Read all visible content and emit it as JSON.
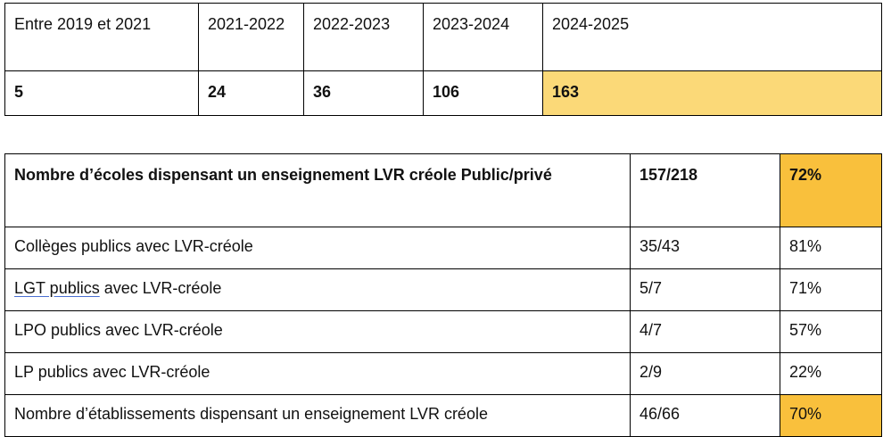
{
  "table_years": {
    "headers": [
      "Entre 2019 et 2021",
      "2021-2022",
      "2022-2023",
      "2023-2024",
      "2024-2025"
    ],
    "values": [
      "5",
      "24",
      "36",
      "106",
      "163"
    ]
  },
  "table_lvr": {
    "rows": [
      {
        "label": "Nombre d’écoles dispensant un enseignement LVR créole Public/privé",
        "ratio": "157/218",
        "percent": "72%"
      },
      {
        "label": "Collèges publics avec LVR-créole",
        "ratio": "35/43",
        "percent": "81%"
      },
      {
        "label_link": "LGT publics",
        "label_rest": " avec LVR-créole",
        "ratio": "5/7",
        "percent": "71%"
      },
      {
        "label": "LPO publics avec LVR-créole",
        "ratio": "4/7",
        "percent": "57%"
      },
      {
        "label": "LP publics avec LVR-créole",
        "ratio": "2/9",
        "percent": "22%"
      },
      {
        "label": "Nombre d’établissements dispensant un enseignement LVR créole",
        "ratio": "46/66",
        "percent": "70%"
      }
    ]
  },
  "colors": {
    "highlight_yellow": "#fbd978",
    "highlight_orange": "#f9c03c"
  }
}
